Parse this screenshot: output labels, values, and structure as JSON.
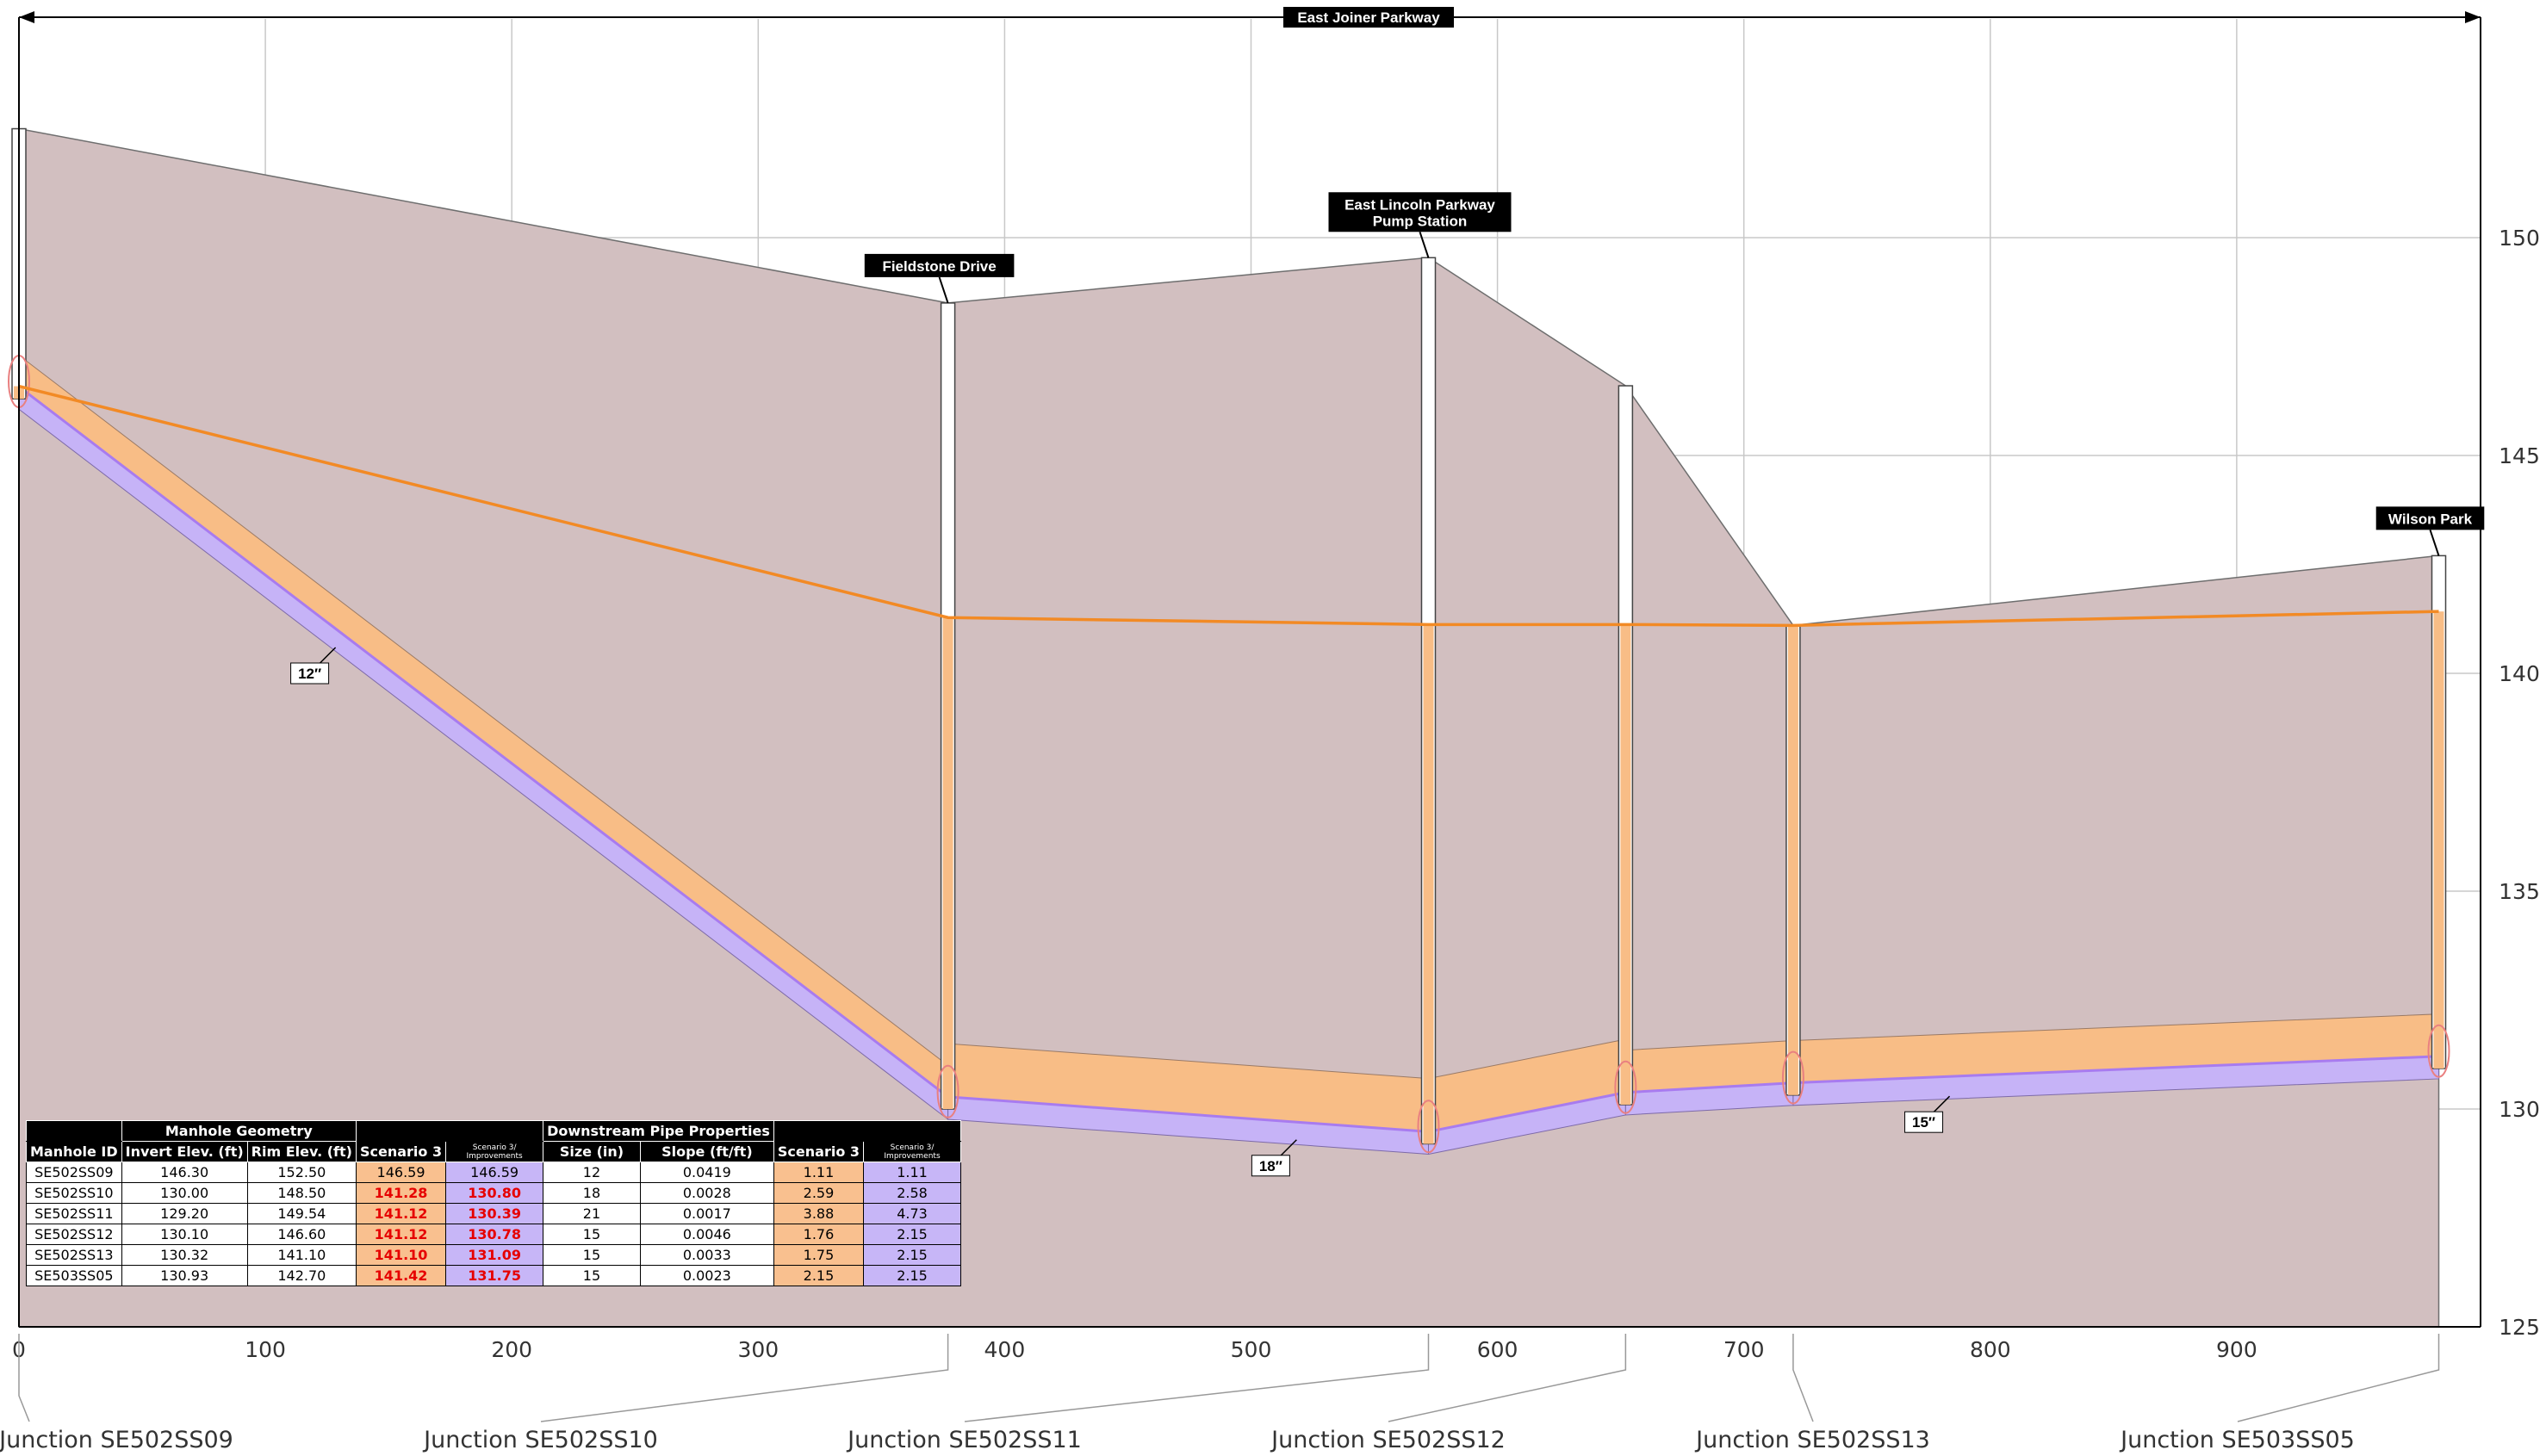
{
  "chart_data": {
    "type": "line",
    "title": "East Joiner Parkway",
    "x_ticks": [
      "0",
      "100",
      "200",
      "300",
      "400",
      "500",
      "600",
      "700",
      "800",
      "900"
    ],
    "y_ticks": [
      "125",
      "130",
      "135",
      "140",
      "145",
      "150"
    ],
    "xlim": [
      0,
      1000
    ],
    "ylim": [
      125,
      153
    ],
    "grid": true,
    "manholes": [
      {
        "id": "SE502SS09",
        "station": 0,
        "invert": 146.3,
        "rim": 152.5,
        "hgl": 146.59,
        "junction": "Junction SE502SS09",
        "callout": ""
      },
      {
        "id": "SE502SS10",
        "station": 377,
        "invert": 130.0,
        "rim": 148.5,
        "hgl": 141.28,
        "junction": "Junction SE502SS10",
        "callout": "Fieldstone Drive"
      },
      {
        "id": "SE502SS11",
        "station": 572,
        "invert": 129.2,
        "rim": 149.54,
        "hgl": 141.12,
        "junction": "Junction SE502SS11",
        "callout": "East Lincoln Parkway\nPump Station"
      },
      {
        "id": "SE502SS12",
        "station": 652,
        "invert": 130.1,
        "rim": 146.6,
        "hgl": 141.12,
        "junction": "Junction SE502SS12",
        "callout": ""
      },
      {
        "id": "SE502SS13",
        "station": 720,
        "invert": 130.32,
        "rim": 141.1,
        "hgl": 141.1,
        "junction": "Junction SE502SS13",
        "callout": ""
      },
      {
        "id": "SE503SS05",
        "station": 982,
        "invert": 130.93,
        "rim": 142.7,
        "hgl": 141.42,
        "junction": "Junction SE503SS05",
        "callout": "Wilson Park"
      }
    ],
    "pipe_size_labels": [
      {
        "text": "12″",
        "station": 118,
        "elev": 140.0
      },
      {
        "text": "18″",
        "station": 508,
        "elev": 128.7
      },
      {
        "text": "15″",
        "station": 773,
        "elev": 129.7
      }
    ],
    "colors": {
      "ground": "#d2bfc0",
      "hgl": "#f28a25",
      "pipe_existing": "#f8bd86",
      "pipe_improved": "#c6b3f7",
      "improved_line": "#a87bef",
      "grid": "#c8c8c8"
    }
  },
  "table": {
    "group_headers": {
      "geometry": "Manhole Geometry",
      "downstream": "Downstream Pipe Properties"
    },
    "columns": [
      "Manhole ID",
      "Invert Elev. (ft)",
      "Rim Elev. (ft)",
      "Scenario 3",
      "Scenario 3/ Improvements",
      "Size (in)",
      "Slope (ft/ft)",
      "Scenario 3",
      "Scenario 3/ Improvements"
    ],
    "rows": [
      [
        "SE502SS09",
        "146.30",
        "152.50",
        "146.59",
        "146.59",
        "12",
        "0.0419",
        "1.11",
        "1.11"
      ],
      [
        "SE502SS10",
        "130.00",
        "148.50",
        "141.28",
        "130.80",
        "18",
        "0.0028",
        "2.59",
        "2.58"
      ],
      [
        "SE502SS11",
        "129.20",
        "149.54",
        "141.12",
        "130.39",
        "21",
        "0.0017",
        "3.88",
        "4.73"
      ],
      [
        "SE502SS12",
        "130.10",
        "146.60",
        "141.12",
        "130.78",
        "15",
        "0.0046",
        "1.76",
        "2.15"
      ],
      [
        "SE502SS13",
        "130.32",
        "141.10",
        "141.10",
        "131.09",
        "15",
        "0.0033",
        "1.75",
        "2.15"
      ],
      [
        "SE503SS05",
        "130.93",
        "142.70",
        "141.42",
        "131.75",
        "15",
        "0.0023",
        "2.15",
        "2.15"
      ]
    ],
    "highlight_red": [
      [
        false,
        false
      ],
      [
        true,
        true
      ],
      [
        true,
        true
      ],
      [
        true,
        true
      ],
      [
        true,
        true
      ],
      [
        true,
        true
      ]
    ]
  }
}
